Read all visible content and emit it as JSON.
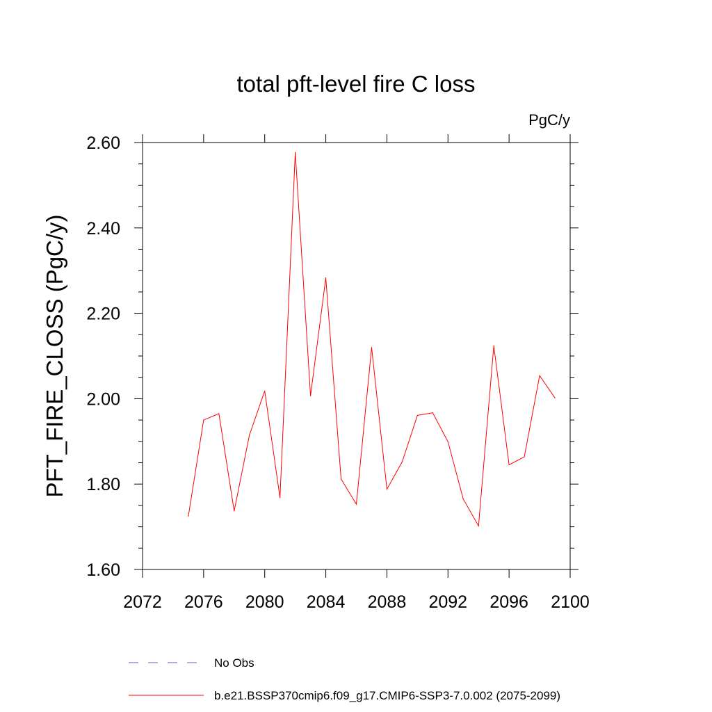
{
  "chart_data": {
    "type": "line",
    "title": "total pft-level fire C loss",
    "units_label": "PgC/y",
    "ylabel": "PFT_FIRE_CLOSS  (PgC/y)",
    "xlabel": "",
    "xlim": [
      2072,
      2100
    ],
    "ylim": [
      1.6,
      2.6
    ],
    "x_ticks": [
      2072,
      2076,
      2080,
      2084,
      2088,
      2092,
      2096,
      2100
    ],
    "x_tick_labels": [
      "2072",
      "2076",
      "2080",
      "2084",
      "2088",
      "2092",
      "2096",
      "2100"
    ],
    "y_ticks": [
      1.6,
      1.8,
      2.0,
      2.2,
      2.4,
      2.6
    ],
    "y_tick_labels": [
      "1.60",
      "1.80",
      "2.00",
      "2.20",
      "2.40",
      "2.60"
    ],
    "grid": false,
    "legend_position": "bottom",
    "series": [
      {
        "name": "b.e21.BSSP370cmip6.f09_g17.CMIP6-SSP3-7.0.002 (2075-2099)",
        "color": "#ff0000",
        "style": "solid",
        "x": [
          2075,
          2076,
          2077,
          2078,
          2079,
          2080,
          2081,
          2082,
          2083,
          2084,
          2085,
          2086,
          2087,
          2088,
          2089,
          2090,
          2091,
          2092,
          2093,
          2094,
          2095,
          2096,
          2097,
          2098,
          2099
        ],
        "values": [
          1.725,
          1.95,
          1.965,
          1.737,
          1.915,
          2.018,
          1.768,
          2.577,
          2.007,
          2.283,
          1.812,
          1.753,
          2.12,
          1.788,
          1.852,
          1.961,
          1.967,
          1.899,
          1.765,
          1.702,
          2.124,
          1.845,
          1.864,
          2.054,
          2.002
        ]
      }
    ],
    "legend": [
      {
        "label": "No Obs",
        "color": "#6a5acd",
        "style": "dashed"
      },
      {
        "label": "b.e21.BSSP370cmip6.f09_g17.CMIP6-SSP3-7.0.002 (2075-2099)",
        "color": "#ff0000",
        "style": "solid"
      }
    ]
  }
}
